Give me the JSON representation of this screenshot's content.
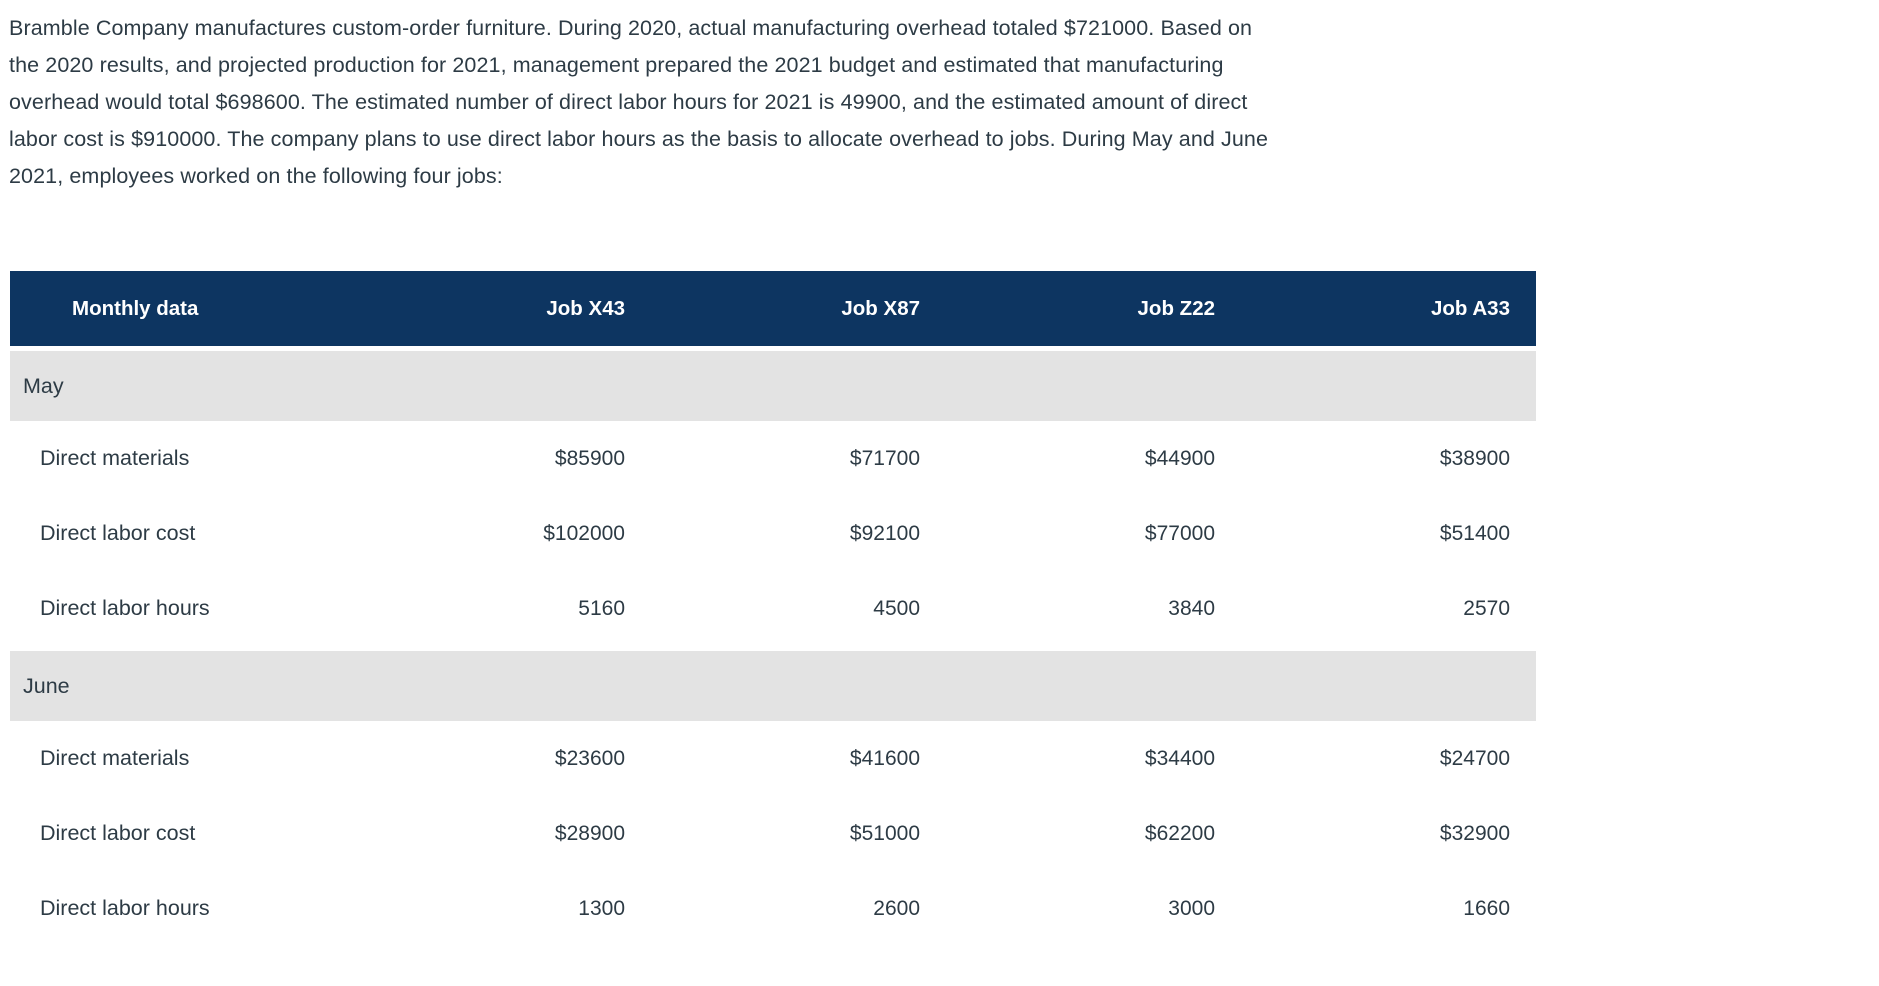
{
  "intro": {
    "lines": [
      "Bramble Company manufactures custom-order furniture. During 2020, actual manufacturing overhead totaled $721000. Based on",
      "the 2020 results, and projected production for 2021, management prepared the 2021 budget and estimated that manufacturing",
      "overhead would total $698600. The estimated number of direct labor hours for 2021 is 49900, and the estimated amount of direct",
      "labor cost is $910000. The company plans to use direct labor hours as the basis to allocate overhead to jobs. During May and June",
      "2021, employees worked on the following four jobs:"
    ]
  },
  "table": {
    "header": {
      "col0": "Monthly data",
      "col1": "Job X43",
      "col2": "Job X87",
      "col3": "Job Z22",
      "col4": "Job A33"
    },
    "sections": [
      {
        "label": "May",
        "rows": [
          {
            "label": "Direct materials",
            "values": [
              "$85900",
              "$71700",
              "$44900",
              "$38900"
            ]
          },
          {
            "label": "Direct labor cost",
            "values": [
              "$102000",
              "$92100",
              "$77000",
              "$51400"
            ]
          },
          {
            "label": "Direct labor hours",
            "values": [
              "5160",
              "4500",
              "3840",
              "2570"
            ]
          }
        ]
      },
      {
        "label": "June",
        "rows": [
          {
            "label": "Direct materials",
            "values": [
              "$23600",
              "$41600",
              "$34400",
              "$24700"
            ]
          },
          {
            "label": "Direct labor cost",
            "values": [
              "$28900",
              "$51000",
              "$62200",
              "$32900"
            ]
          },
          {
            "label": "Direct labor hours",
            "values": [
              "1300",
              "2600",
              "3000",
              "1660"
            ]
          }
        ]
      }
    ]
  },
  "colors": {
    "header_bg": "#0d3561",
    "header_text": "#ffffff",
    "section_bg": "#e3e3e3",
    "body_text": "#2d3b45"
  }
}
